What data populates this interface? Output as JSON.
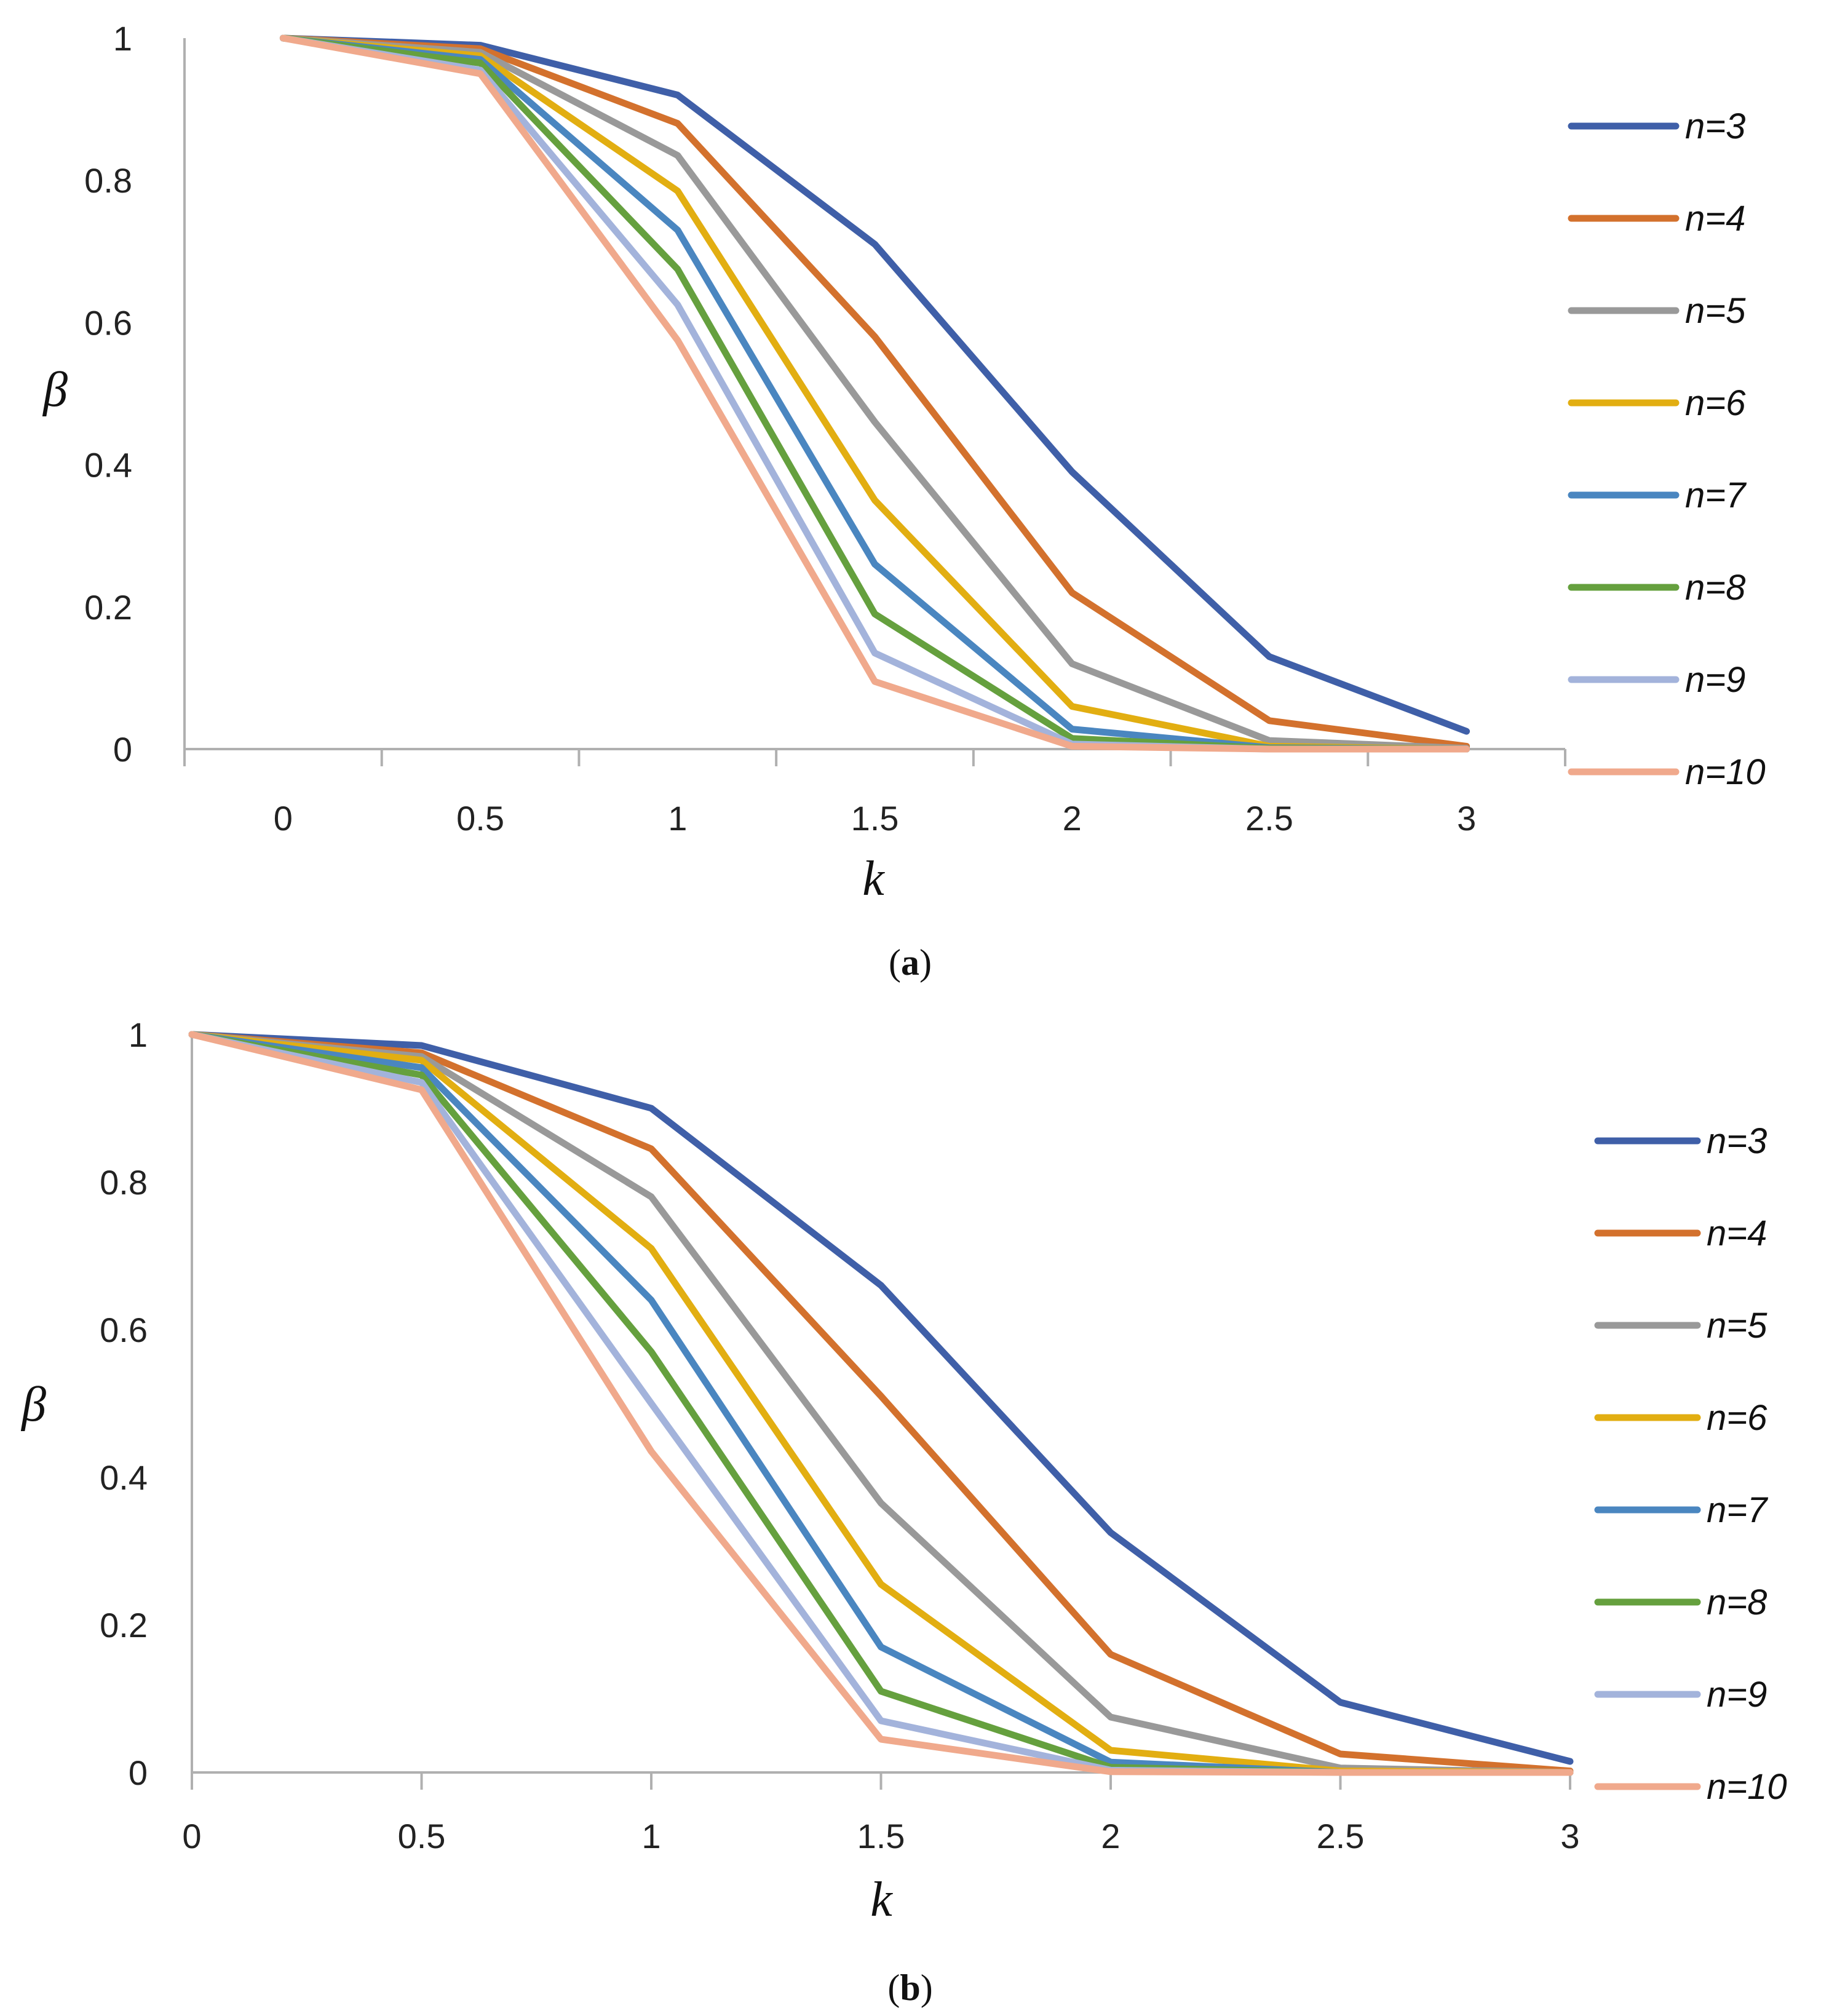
{
  "chart_data": [
    {
      "id": "a",
      "type": "line",
      "caption": {
        "open": "(",
        "letter": "a",
        "close": ")"
      },
      "xlabel": "k",
      "ylabel": "β",
      "x": [
        0,
        0.5,
        1,
        1.5,
        2,
        2.5,
        3
      ],
      "x_tick_labels": [
        "0",
        "0.5",
        "1",
        "1.5",
        "2",
        "2.5",
        "3"
      ],
      "y_tick_labels": [
        "0",
        "0.2",
        "0.4",
        "0.6",
        "0.8",
        "1"
      ],
      "ylim": [
        0,
        1
      ],
      "legend_position": "right",
      "series": [
        {
          "name": "n=3",
          "color": "#3F5FA8",
          "values": [
            1,
            0.99,
            0.92,
            0.71,
            0.39,
            0.13,
            0.025
          ]
        },
        {
          "name": "n=4",
          "color": "#D3712D",
          "values": [
            1,
            0.985,
            0.88,
            0.58,
            0.22,
            0.04,
            0.004
          ]
        },
        {
          "name": "n=5",
          "color": "#999999",
          "values": [
            1,
            0.98,
            0.835,
            0.46,
            0.12,
            0.012,
            0.001
          ]
        },
        {
          "name": "n=6",
          "color": "#E2AE11",
          "values": [
            1,
            0.975,
            0.785,
            0.35,
            0.06,
            0.004,
            0.0
          ]
        },
        {
          "name": "n=7",
          "color": "#4A86C0",
          "values": [
            1,
            0.97,
            0.73,
            0.26,
            0.028,
            0.002,
            0.0
          ]
        },
        {
          "name": "n=8",
          "color": "#65A03E",
          "values": [
            1,
            0.965,
            0.675,
            0.19,
            0.015,
            0.001,
            0.0
          ]
        },
        {
          "name": "n=9",
          "color": "#A3B3DB",
          "values": [
            1,
            0.955,
            0.625,
            0.135,
            0.007,
            0.0,
            0.0
          ]
        },
        {
          "name": "n=10",
          "color": "#F0A98C",
          "values": [
            1,
            0.95,
            0.575,
            0.095,
            0.004,
            0.0,
            0.0
          ]
        }
      ]
    },
    {
      "id": "b",
      "type": "line",
      "caption": {
        "open": "(",
        "letter": "b",
        "close": ")"
      },
      "xlabel": "k",
      "ylabel": "β",
      "x": [
        0,
        0.5,
        1,
        1.5,
        2,
        2.5,
        3
      ],
      "x_tick_labels": [
        "0",
        "0.5",
        "1",
        "1.5",
        "2",
        "2.5",
        "3"
      ],
      "y_tick_labels": [
        "0",
        "0.2",
        "0.4",
        "0.6",
        "0.8",
        "1"
      ],
      "ylim": [
        0,
        1
      ],
      "legend_position": "right",
      "series": [
        {
          "name": "n=3",
          "color": "#3F5FA8",
          "values": [
            1,
            0.985,
            0.9,
            0.66,
            0.325,
            0.095,
            0.015
          ]
        },
        {
          "name": "n=4",
          "color": "#D3712D",
          "values": [
            1,
            0.975,
            0.845,
            0.51,
            0.16,
            0.025,
            0.002
          ]
        },
        {
          "name": "n=5",
          "color": "#999999",
          "values": [
            1,
            0.97,
            0.78,
            0.365,
            0.075,
            0.006,
            0.0
          ]
        },
        {
          "name": "n=6",
          "color": "#E2AE11",
          "values": [
            1,
            0.965,
            0.71,
            0.255,
            0.03,
            0.002,
            0.0
          ]
        },
        {
          "name": "n=7",
          "color": "#4A86C0",
          "values": [
            1,
            0.955,
            0.64,
            0.17,
            0.014,
            0.0,
            0.0
          ]
        },
        {
          "name": "n=8",
          "color": "#65A03E",
          "values": [
            1,
            0.945,
            0.57,
            0.11,
            0.007,
            0.0,
            0.0
          ]
        },
        {
          "name": "n=9",
          "color": "#A3B3DB",
          "values": [
            1,
            0.935,
            0.5,
            0.07,
            0.003,
            0.0,
            0.0
          ]
        },
        {
          "name": "n=10",
          "color": "#F0A98C",
          "values": [
            1,
            0.925,
            0.435,
            0.045,
            0.001,
            0.0,
            0.0
          ]
        }
      ]
    }
  ]
}
